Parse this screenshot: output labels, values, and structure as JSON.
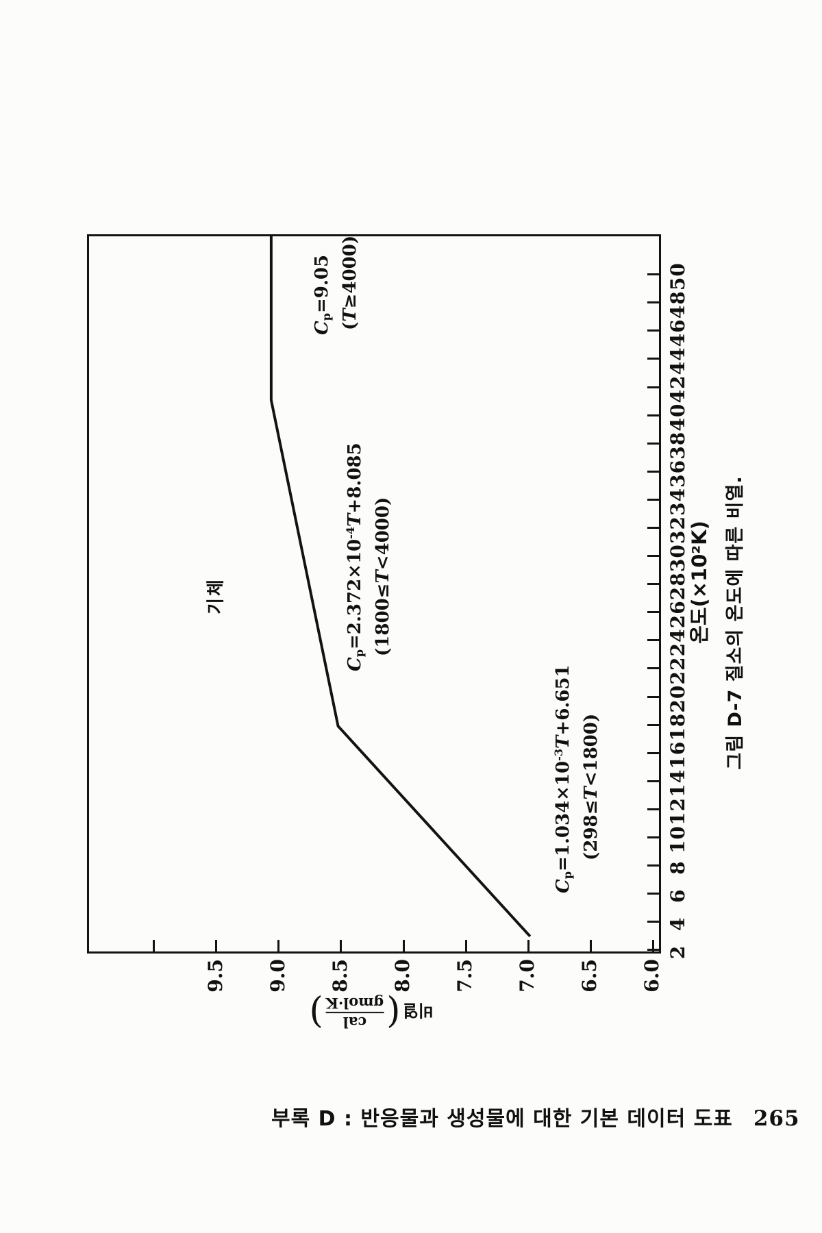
{
  "page": {
    "footer_text": "부록 D : 반응물과 생성물에 대한 기본 데이터 도표",
    "page_number": "265"
  },
  "figure": {
    "caption": "그림 D-7  질소의 온도에 따른 비열.",
    "region_label": "기체"
  },
  "chart_data": {
    "type": "line",
    "orientation": "chart rotated 90° counterclockwise on the page",
    "xlabel": "온도(×10²K)",
    "ylabel_word": "비열",
    "ylabel_unit_numerator": "cal",
    "ylabel_unit_denominator": "gmol·K",
    "xlim": [
      1.9,
      53
    ],
    "ylim": [
      5.92,
      10.52
    ],
    "xticks": [
      2,
      4,
      6,
      8,
      10,
      12,
      14,
      16,
      18,
      20,
      22,
      24,
      26,
      28,
      30,
      32,
      34,
      36,
      38,
      40,
      42,
      44,
      46,
      48,
      50
    ],
    "yticks": [
      6.0,
      6.5,
      7.0,
      7.5,
      8.0,
      8.5,
      9.0,
      9.5,
      10.0
    ],
    "ytick_label_max": 9.5,
    "grid": false,
    "series": [
      {
        "name": "Cp of nitrogen",
        "x": [
          2.98,
          18,
          41.3,
          53
        ],
        "y": [
          6.96,
          8.51,
          9.05,
          9.05
        ]
      }
    ],
    "annotations": [
      {
        "var": "C",
        "sub": "p",
        "eq_pre": "=9.05",
        "eq_sup": "",
        "eq_var": "",
        "eq_post": "",
        "cond_pre": "(",
        "cond_var": "T",
        "cond_post": "≥4000)"
      },
      {
        "var": "C",
        "sub": "p",
        "eq_pre": "=2.372×10",
        "eq_sup": "-4",
        "eq_var": "T",
        "eq_post": "+8.085",
        "cond_pre": "(1800≤",
        "cond_var": "T",
        "cond_post": "<4000)"
      },
      {
        "var": "C",
        "sub": "p",
        "eq_pre": "=1.034×10",
        "eq_sup": "-3",
        "eq_var": "T",
        "eq_post": "+6.651",
        "cond_pre": "(298≤",
        "cond_var": "T",
        "cond_post": "<1800)"
      }
    ]
  }
}
